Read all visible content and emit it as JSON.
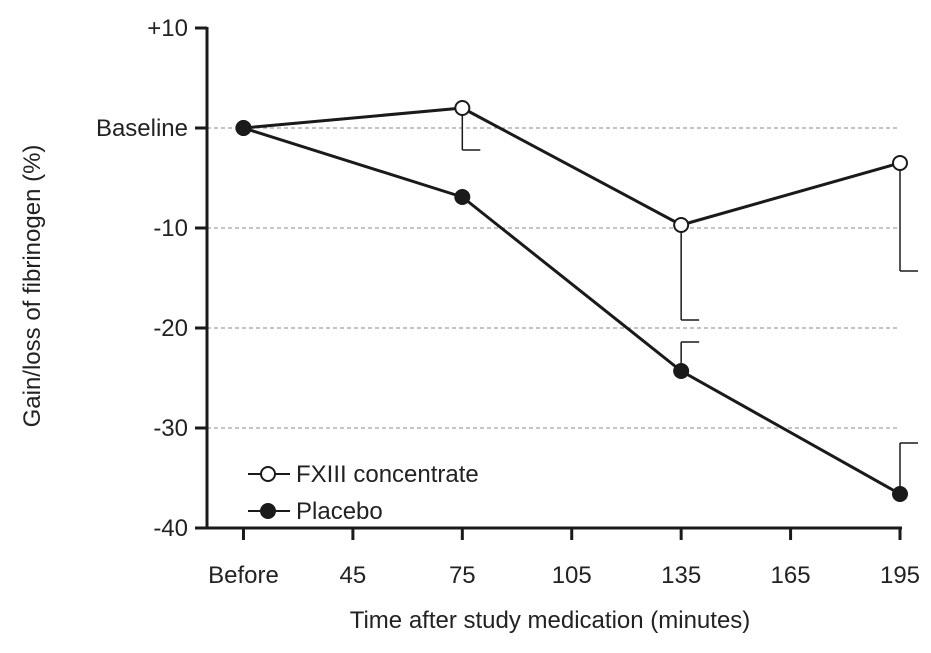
{
  "chart_data": {
    "type": "line",
    "xlabel": "Time after study medication (minutes)",
    "ylabel": "Gain/loss of fibrinogen (%)",
    "x_tick_labels": [
      "Before",
      "45",
      "75",
      "105",
      "135",
      "165",
      "195"
    ],
    "x_tick_values": [
      15,
      45,
      75,
      105,
      135,
      165,
      195
    ],
    "x_range": [
      5,
      195
    ],
    "y_range": [
      -40,
      10
    ],
    "y_ticks": [
      {
        "value": 10,
        "label": "+10"
      },
      {
        "value": 0,
        "label": "Baseline"
      },
      {
        "value": -10,
        "label": "-10"
      },
      {
        "value": -20,
        "label": "-20"
      },
      {
        "value": -30,
        "label": "-30"
      },
      {
        "value": -40,
        "label": "-40"
      }
    ],
    "gridlines_at": [
      0,
      -10,
      -20,
      -30
    ],
    "legend_position": "bottom-left",
    "series": [
      {
        "name": "FXIII concentrate",
        "marker": "open-circle",
        "x": [
          15,
          75,
          135,
          195
        ],
        "y": [
          0,
          2,
          -9.7,
          -3.5
        ],
        "error_lower": [
          null,
          -2.2,
          -19.2,
          -14.3
        ]
      },
      {
        "name": "Placebo",
        "marker": "filled-circle",
        "x": [
          15,
          75,
          135,
          195
        ],
        "y": [
          0,
          -6.9,
          -24.3,
          -36.6
        ],
        "error_upper": [
          null,
          null,
          -21.4,
          -31.5
        ]
      }
    ],
    "colors": {
      "line": "#1a1a1a",
      "grid": "#888888",
      "text": "#222222"
    }
  }
}
